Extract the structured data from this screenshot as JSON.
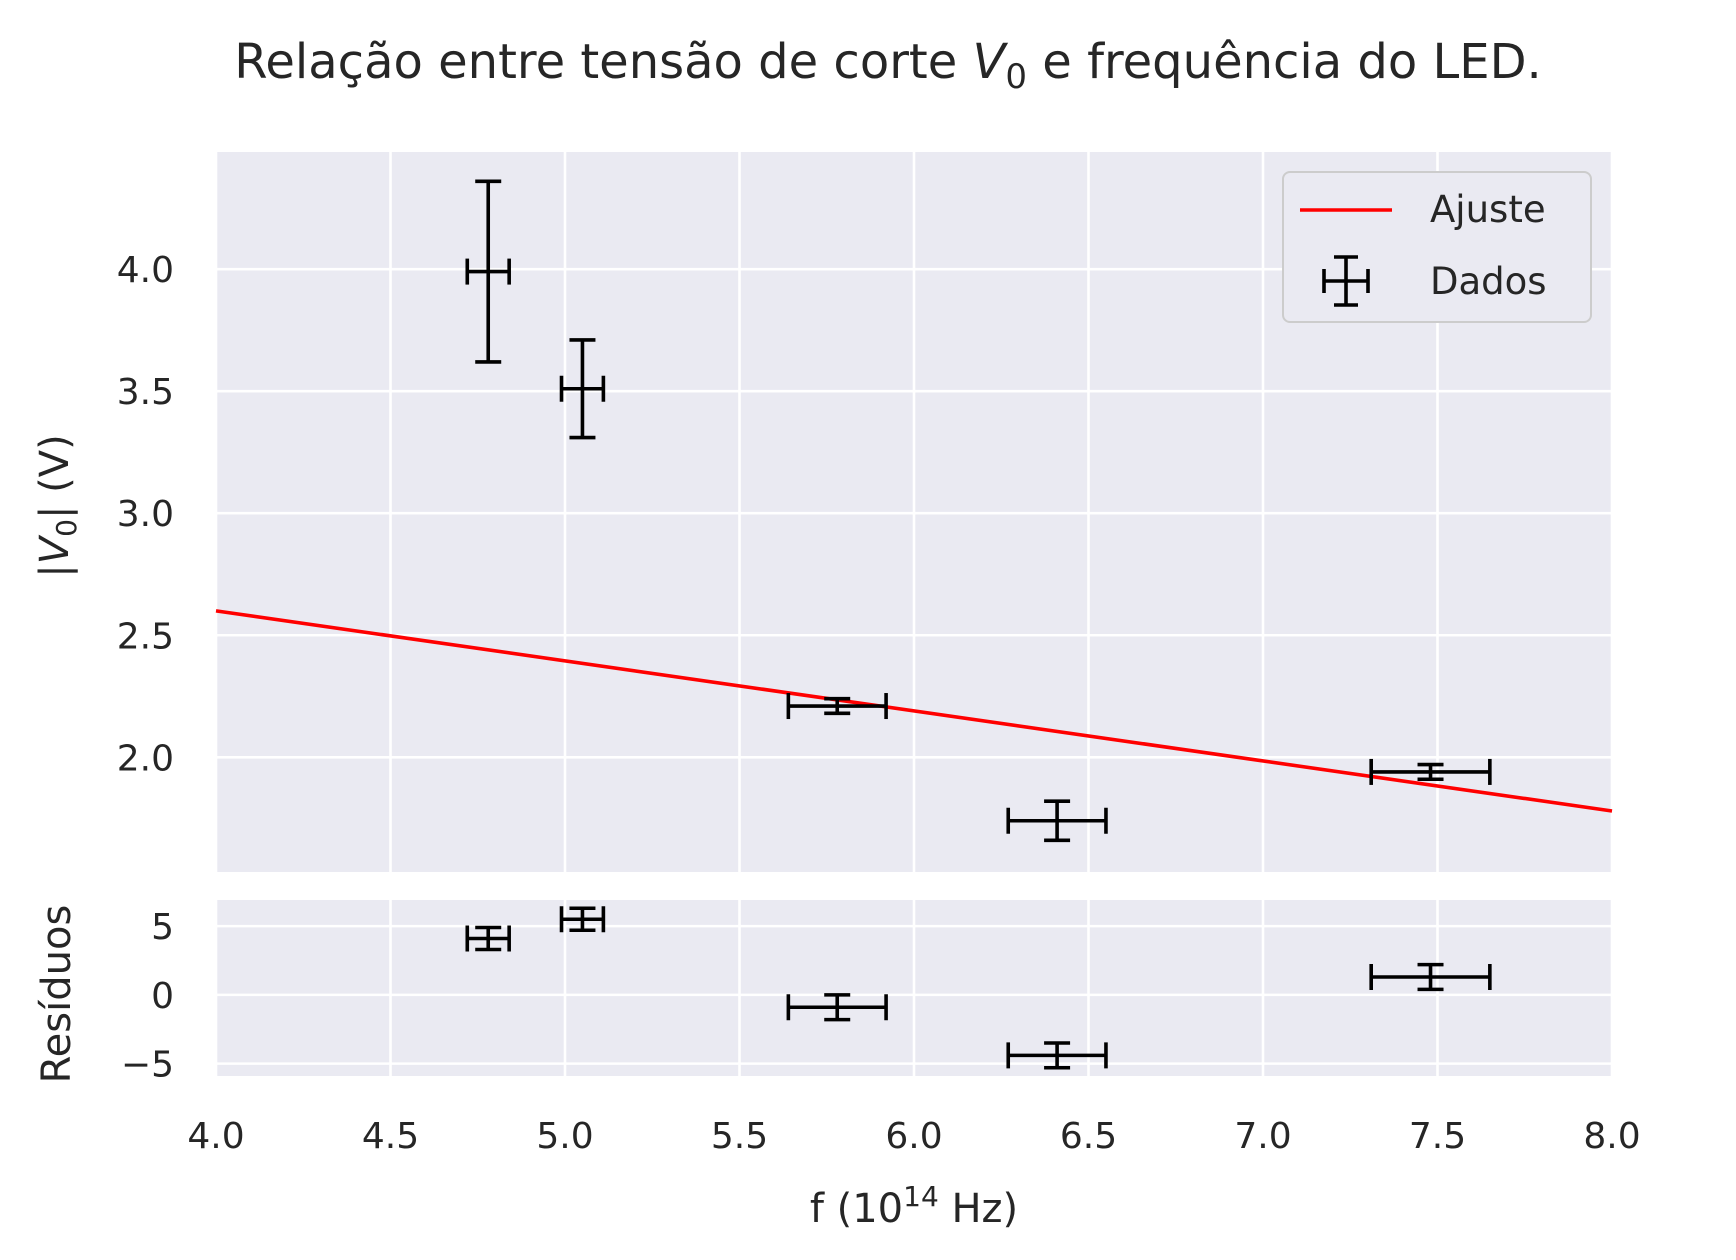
{
  "chart_data": [
    {
      "type": "line",
      "title_prefix": "Relação entre tensão de corte ",
      "title_var": "V",
      "title_sub": "0",
      "title_suffix": " e frequência do LED.",
      "ylabel_pre": "|V",
      "ylabel_sub": "0",
      "ylabel_post": "| (V)",
      "xlim": [
        4.0,
        8.0
      ],
      "ylim": [
        1.53,
        4.48
      ],
      "yticks": [
        "2.0",
        "2.5",
        "3.0",
        "3.5",
        "4.0"
      ],
      "ytick_values": [
        2.0,
        2.5,
        3.0,
        3.5,
        4.0
      ],
      "grid": true,
      "legend_position": "top-right",
      "series": [
        {
          "name": "Ajuste",
          "kind": "line",
          "color": "#ff0000",
          "x": [
            4.0,
            8.0
          ],
          "y": [
            2.6,
            1.78
          ]
        },
        {
          "name": "Dados",
          "kind": "errorbar",
          "color": "#000000",
          "x": [
            4.78,
            5.05,
            5.78,
            6.41,
            7.48
          ],
          "y": [
            3.99,
            3.51,
            2.21,
            1.74,
            1.94
          ],
          "xerr": [
            0.06,
            0.06,
            0.14,
            0.14,
            0.17
          ],
          "yerr": [
            0.37,
            0.2,
            0.03,
            0.08,
            0.03
          ]
        }
      ]
    },
    {
      "type": "scatter",
      "ylabel": "Resíduos",
      "xlabel_pre": "f (10",
      "xlabel_sup": "14",
      "xlabel_post": " Hz)",
      "xlim": [
        4.0,
        8.0
      ],
      "ylim": [
        -5.9,
        6.9
      ],
      "xticks": [
        "4.0",
        "4.5",
        "5.0",
        "5.5",
        "6.0",
        "6.5",
        "7.0",
        "7.5",
        "8.0"
      ],
      "xtick_values": [
        4.0,
        4.5,
        5.0,
        5.5,
        6.0,
        6.5,
        7.0,
        7.5,
        8.0
      ],
      "yticks": [
        "5",
        "0",
        "−5"
      ],
      "ytick_values": [
        5,
        0,
        -5
      ],
      "grid": true,
      "series": [
        {
          "name": "",
          "kind": "errorbar",
          "color": "#000000",
          "x": [
            4.78,
            5.05,
            5.78,
            6.41,
            7.48
          ],
          "y": [
            4.1,
            5.5,
            -0.9,
            -4.4,
            1.3
          ],
          "xerr": [
            0.06,
            0.06,
            0.14,
            0.14,
            0.17
          ],
          "yerr": [
            0.8,
            0.8,
            0.9,
            0.9,
            0.9
          ]
        }
      ]
    }
  ]
}
